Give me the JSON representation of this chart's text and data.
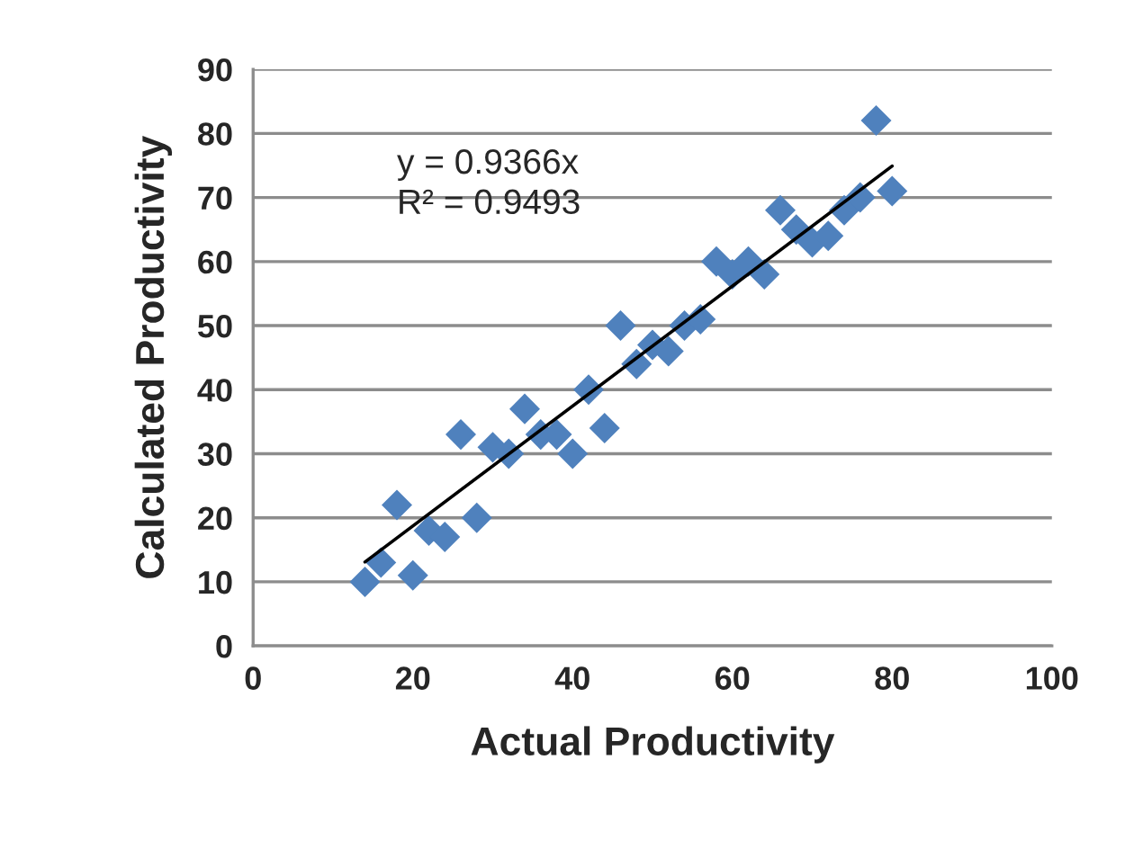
{
  "chart_data": {
    "type": "scatter",
    "xlabel": "Actual Productivity",
    "ylabel": "Calculated Productivity",
    "series": [
      {
        "color": "#4f81bd",
        "marker": "diamond",
        "x": [
          14,
          16,
          18,
          20,
          22,
          24,
          26,
          28,
          30,
          32,
          34,
          36,
          38,
          40,
          42,
          44,
          46,
          48,
          50,
          52,
          54,
          56,
          58,
          60,
          62,
          64,
          66,
          68,
          70,
          72,
          74,
          76,
          78,
          80
        ],
        "values": [
          10,
          13,
          22,
          11,
          18,
          17,
          33,
          20,
          31,
          30,
          37,
          33,
          33,
          30,
          40,
          34,
          50,
          44,
          47,
          46,
          50,
          51,
          60,
          58,
          60,
          58,
          68,
          65,
          63,
          64,
          68,
          70,
          82,
          71
        ]
      },
      {
        "type": "line",
        "color": "#000000",
        "marker": "none",
        "x": [
          14,
          80
        ],
        "values": [
          13.1,
          74.9
        ]
      }
    ],
    "annotations": [
      "y = 0.9366x\nR² = 0.9493"
    ],
    "xlim": [
      0,
      100
    ],
    "xticks": [
      0,
      20,
      40,
      60,
      80,
      100
    ],
    "ylim": [
      0,
      90
    ],
    "yticks": [
      0,
      10,
      20,
      30,
      40,
      50,
      60,
      70,
      80,
      90
    ],
    "grid": "y",
    "legend": false
  }
}
